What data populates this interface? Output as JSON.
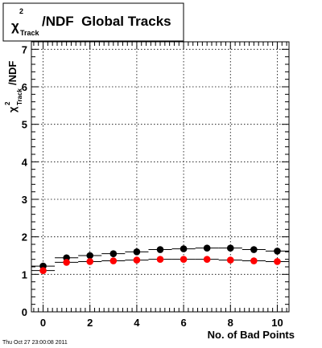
{
  "title": {
    "chi": "χ",
    "superscript": "2",
    "subscript": "Track",
    "rest": "/NDF  Global Tracks"
  },
  "timestamp": "Thu Oct 27 23:00:08 2011",
  "chart_data": {
    "type": "scatter",
    "title": "χ²_Track/NDF  Global Tracks",
    "xlabel": "No. of Bad Points",
    "ylabel": "χ²_Track/NDF",
    "xlim": [
      -0.5,
      10.5
    ],
    "ylim": [
      0,
      7.2
    ],
    "grid": true,
    "xticks": [
      0,
      2,
      4,
      6,
      8,
      10
    ],
    "yticks": [
      0,
      1,
      2,
      3,
      4,
      5,
      6,
      7
    ],
    "series": [
      {
        "color": "#000000",
        "x": [
          0,
          1,
          2,
          3,
          4,
          5,
          6,
          7,
          8,
          9,
          10
        ],
        "y": [
          1.22,
          1.44,
          1.5,
          1.55,
          1.6,
          1.66,
          1.68,
          1.7,
          1.7,
          1.66,
          1.62
        ]
      },
      {
        "color": "#ff0000",
        "x": [
          0,
          1,
          2,
          3,
          4,
          5,
          6,
          7,
          8,
          9,
          10
        ],
        "y": [
          1.1,
          1.32,
          1.34,
          1.36,
          1.38,
          1.4,
          1.4,
          1.4,
          1.38,
          1.36,
          1.34
        ]
      }
    ]
  }
}
